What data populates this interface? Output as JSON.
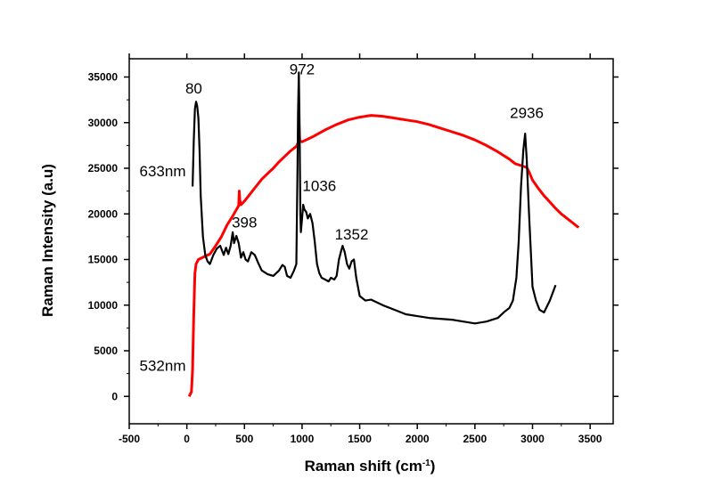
{
  "chart_data": {
    "type": "line",
    "xlabel": "Raman shift (cm",
    "xlabel_sup": "-1",
    "xlabel_close": ")",
    "ylabel": "Raman Intensity (a.u)",
    "xlim": [
      -500,
      3700
    ],
    "ylim": [
      -3000,
      37000
    ],
    "x_ticks": [
      -500,
      0,
      500,
      1000,
      1500,
      2000,
      2500,
      3000,
      3500
    ],
    "y_ticks": [
      0,
      5000,
      10000,
      15000,
      20000,
      25000,
      30000,
      35000
    ],
    "grid": false,
    "colors": {
      "633nm": "#000000",
      "532nm": "#ff0000"
    },
    "series": [
      {
        "name": "633nm",
        "color": "#000000",
        "x": [
          50,
          60,
          70,
          80,
          90,
          100,
          110,
          120,
          140,
          160,
          180,
          200,
          230,
          260,
          290,
          320,
          340,
          360,
          380,
          398,
          410,
          430,
          450,
          470,
          490,
          510,
          530,
          560,
          590,
          620,
          650,
          700,
          750,
          800,
          830,
          850,
          870,
          900,
          930,
          950,
          960,
          965,
          972,
          978,
          985,
          990,
          1000,
          1010,
          1020,
          1036,
          1050,
          1070,
          1090,
          1110,
          1130,
          1150,
          1170,
          1200,
          1230,
          1250,
          1280,
          1300,
          1320,
          1340,
          1352,
          1370,
          1390,
          1410,
          1430,
          1450,
          1470,
          1500,
          1550,
          1600,
          1700,
          1800,
          1900,
          2000,
          2100,
          2200,
          2300,
          2400,
          2500,
          2600,
          2700,
          2750,
          2800,
          2830,
          2860,
          2880,
          2900,
          2920,
          2936,
          2950,
          2970,
          3000,
          3030,
          3060,
          3100,
          3150,
          3200
        ],
        "values": [
          23000,
          28000,
          31500,
          32300,
          31800,
          30500,
          27000,
          22000,
          17500,
          15500,
          14800,
          14500,
          15500,
          16200,
          16500,
          15500,
          16300,
          15600,
          16500,
          18000,
          16800,
          17600,
          16800,
          15200,
          15800,
          15000,
          14800,
          15800,
          15500,
          14600,
          13800,
          13400,
          13200,
          13800,
          14400,
          14200,
          13200,
          13000,
          13800,
          14500,
          25000,
          31000,
          35500,
          30000,
          20000,
          18000,
          19500,
          21000,
          20500,
          20200,
          19500,
          20000,
          19000,
          17000,
          14500,
          13500,
          13000,
          12800,
          12600,
          13000,
          12800,
          13200,
          15000,
          16000,
          16500,
          15800,
          14500,
          14000,
          14800,
          15000,
          13000,
          11000,
          10500,
          10600,
          10000,
          9500,
          9000,
          8800,
          8600,
          8500,
          8400,
          8200,
          8000,
          8200,
          8600,
          9200,
          9700,
          10500,
          13000,
          17000,
          23000,
          27000,
          28800,
          26000,
          20000,
          12000,
          10500,
          9500,
          9200,
          10500,
          12200
        ]
      },
      {
        "name": "532nm",
        "color": "#ff0000",
        "x": [
          20,
          40,
          50,
          60,
          70,
          80,
          100,
          150,
          200,
          250,
          300,
          350,
          400,
          450,
          455,
          460,
          470,
          500,
          550,
          600,
          650,
          700,
          750,
          800,
          850,
          900,
          950,
          970,
          975,
          980,
          1000,
          1100,
          1200,
          1300,
          1400,
          1500,
          1600,
          1700,
          1800,
          1900,
          2000,
          2100,
          2200,
          2300,
          2400,
          2500,
          2600,
          2700,
          2800,
          2850,
          2900,
          2920,
          2950,
          2970,
          3000,
          3050,
          3100,
          3150,
          3200,
          3250,
          3300,
          3350,
          3400
        ],
        "values": [
          0,
          500,
          3000,
          9000,
          13500,
          14500,
          15000,
          15300,
          15600,
          16500,
          17500,
          18800,
          19800,
          20900,
          22500,
          21500,
          21000,
          21400,
          22200,
          23000,
          23800,
          24400,
          25000,
          25700,
          26300,
          26900,
          27400,
          27900,
          29500,
          28000,
          27900,
          28500,
          29200,
          29800,
          30300,
          30600,
          30800,
          30700,
          30500,
          30300,
          30100,
          29800,
          29400,
          29000,
          28600,
          28100,
          27500,
          26800,
          26000,
          25500,
          25300,
          25200,
          25100,
          24600,
          23700,
          22800,
          22000,
          21300,
          20600,
          20000,
          19500,
          19000,
          18500
        ]
      }
    ],
    "annotations": [
      {
        "text": "80",
        "x": 60,
        "y": 33200
      },
      {
        "text": "972",
        "x": 1000,
        "y": 35300
      },
      {
        "text": "398",
        "x": 500,
        "y": 18500
      },
      {
        "text": "1036",
        "x": 1150,
        "y": 22500
      },
      {
        "text": "1352",
        "x": 1430,
        "y": 17200
      },
      {
        "text": "2936",
        "x": 2950,
        "y": 30500
      },
      {
        "text": "633nm",
        "x": -210,
        "y": 24100
      },
      {
        "text": "532nm",
        "x": -210,
        "y": 2800
      }
    ]
  }
}
